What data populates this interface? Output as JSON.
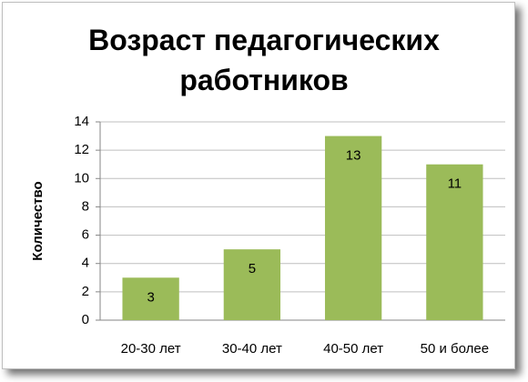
{
  "chart_data": {
    "type": "bar",
    "title": "Возраст педагогических работников",
    "y_label": "Количество",
    "categories": [
      "20-30 лет",
      "30-40 лет",
      "40-50 лет",
      "50 и более"
    ],
    "values": [
      3,
      5,
      13,
      11
    ],
    "color": "#9bbb59",
    "ylim": [
      0,
      14
    ],
    "yticks": [
      0,
      2,
      4,
      6,
      8,
      10,
      12,
      14
    ],
    "grid": true,
    "data_labels": true
  }
}
